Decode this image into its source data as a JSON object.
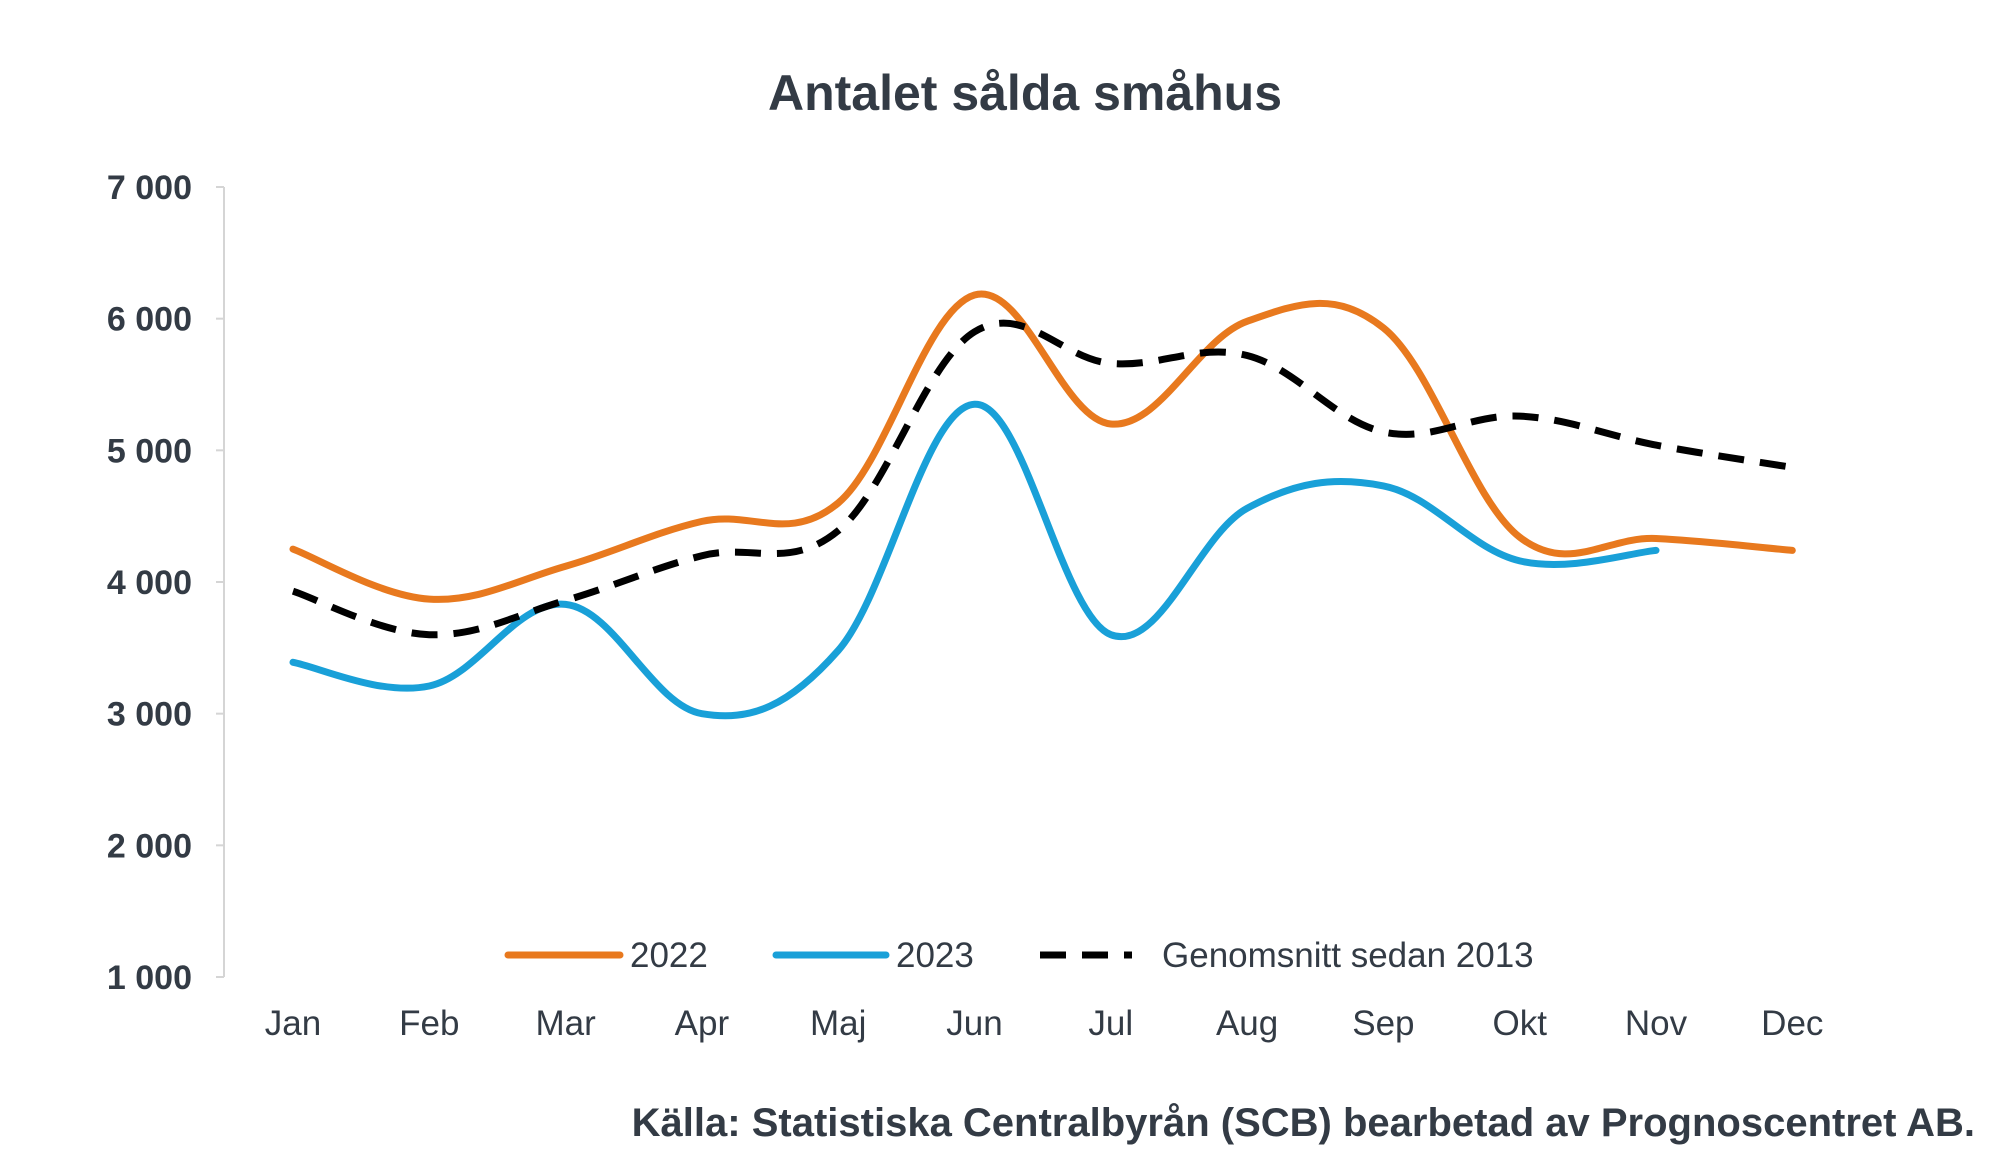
{
  "chart_data": {
    "type": "line",
    "title": "Antalet sålda småhus",
    "xlabel": "",
    "ylabel": "",
    "categories": [
      "Jan",
      "Feb",
      "Mar",
      "Apr",
      "Maj",
      "Jun",
      "Jul",
      "Aug",
      "Sep",
      "Okt",
      "Nov",
      "Dec"
    ],
    "ylim": [
      1000,
      7000
    ],
    "yticks": [
      1000,
      2000,
      3000,
      4000,
      5000,
      6000,
      7000
    ],
    "ytick_labels": [
      "1 000",
      "2 000",
      "3 000",
      "4 000",
      "5 000",
      "6 000",
      "7 000"
    ],
    "grid": false,
    "legend_position": "bottom-inside",
    "series": [
      {
        "name": "2022",
        "color": "#e8791e",
        "dash": "solid",
        "values": [
          4250,
          3870,
          4120,
          4460,
          4600,
          6180,
          5200,
          5980,
          5930,
          4340,
          4330,
          4240
        ]
      },
      {
        "name": "2023",
        "color": "#19a0d8",
        "dash": "solid",
        "values": [
          3390,
          3210,
          3830,
          3000,
          3480,
          5350,
          3600,
          4560,
          4730,
          4160,
          4240,
          null
        ]
      },
      {
        "name": "Genomsnitt sedan 2013",
        "color": "#000000",
        "dash": "dashed",
        "values": [
          3930,
          3600,
          3860,
          4200,
          4390,
          5900,
          5660,
          5720,
          5140,
          5260,
          5040,
          4870
        ]
      }
    ],
    "source": "Källa: Statistiska Centralbyrån (SCB) bearbetad av Prognoscentret AB."
  }
}
